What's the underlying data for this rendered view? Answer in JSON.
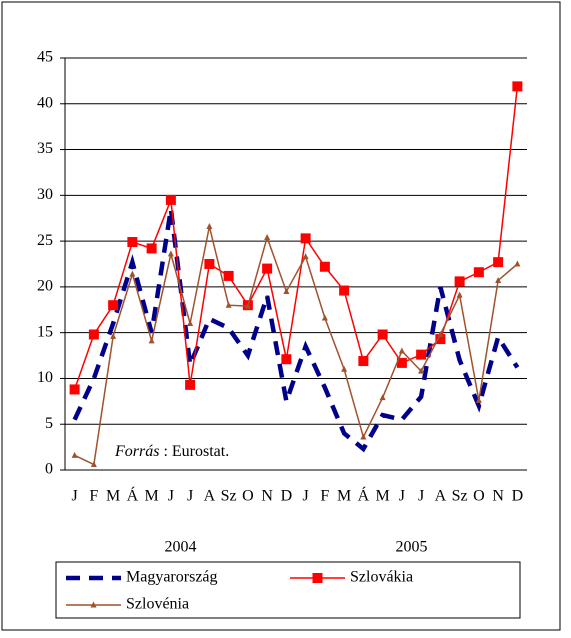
{
  "chart_data": {
    "type": "line",
    "categories": [
      "J",
      "F",
      "M",
      "Á",
      "M",
      "J",
      "J",
      "A",
      "Sz",
      "O",
      "N",
      "D",
      "J",
      "F",
      "M",
      "Á",
      "M",
      "J",
      "J",
      "A",
      "Sz",
      "O",
      "N",
      "D"
    ],
    "year_labels": [
      "2004",
      "2005"
    ],
    "annotation": {
      "source_label": "Forrás",
      "source_text": ": Eurostat."
    },
    "ylim": [
      0,
      45
    ],
    "yticks": [
      0,
      5,
      10,
      15,
      20,
      25,
      30,
      35,
      40,
      45
    ],
    "grid": true,
    "series": [
      {
        "name": "Magyarország",
        "color": "#00008b",
        "style": "dashed",
        "values": [
          5.5,
          10,
          16,
          22.7,
          15,
          28.5,
          11.5,
          16.5,
          15.5,
          12.5,
          19,
          7.5,
          13.5,
          9,
          4,
          2.3,
          6,
          5.5,
          8,
          20,
          12,
          7,
          14.5,
          11.2
        ]
      },
      {
        "name": "Szlovákia",
        "color": "#ff0000",
        "marker": "square",
        "values": [
          8.8,
          14.8,
          18,
          24.9,
          24.2,
          29.5,
          9.3,
          22.5,
          21.2,
          18,
          22,
          12.1,
          25.3,
          22.2,
          19.6,
          11.9,
          14.8,
          11.7,
          12.6,
          14.3,
          20.6,
          21.6,
          22.7,
          41.9
        ]
      },
      {
        "name": "Szlovénia",
        "color": "#a0522d",
        "marker": "triangle",
        "values": [
          1.6,
          0.6,
          14.6,
          21.4,
          14.1,
          23.6,
          16,
          26.6,
          18,
          17.9,
          25.4,
          19.5,
          23.3,
          16.6,
          11,
          3.6,
          7.9,
          13,
          10.8,
          14.8,
          19.1,
          7.6,
          20.7,
          22.5
        ]
      }
    ]
  }
}
